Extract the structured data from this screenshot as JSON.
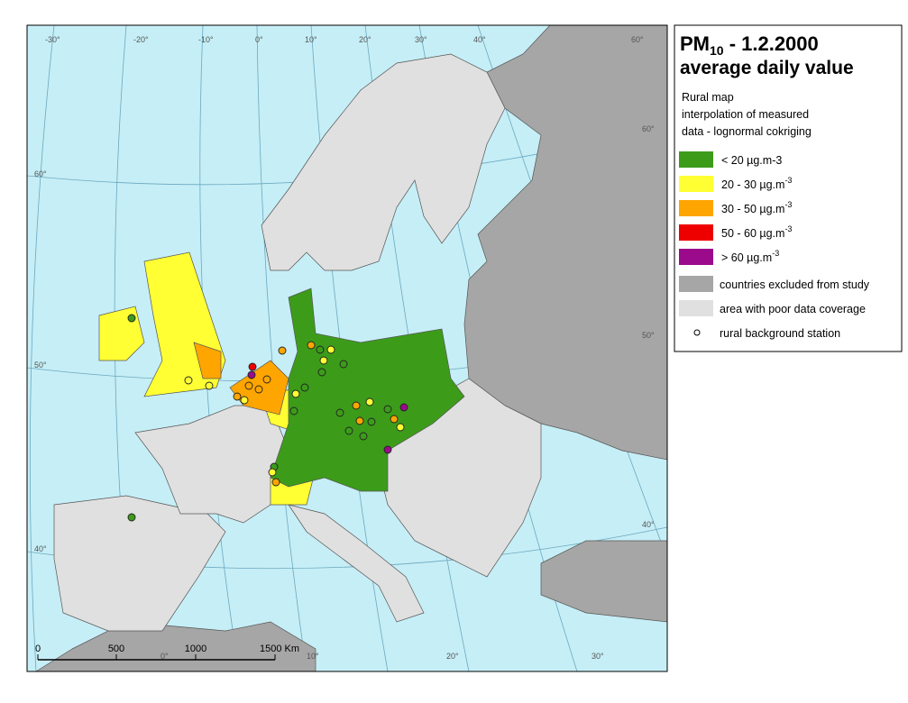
{
  "legend": {
    "title_prefix": "PM",
    "title_sub": "10",
    "title_rest": " - 1.2.2000",
    "title_line2": "average daily value",
    "subtitle": [
      "Rural map",
      "interpolation of measured",
      "data - lognormal cokriging"
    ],
    "classes": [
      {
        "label": "<  20  µg.m-3",
        "color": "#3c9c1a"
      },
      {
        "label": "20 - 30  µg.m",
        "sup": "-3",
        "color": "#ffff33"
      },
      {
        "label": "30 - 50  µg.m",
        "sup": "-3",
        "color": "#ffa500"
      },
      {
        "label": "50 - 60  µg.m",
        "sup": "-3",
        "color": "#ee0000"
      },
      {
        "label": ">  60  µg.m",
        "sup": "-3",
        "color": "#9c0a8c"
      }
    ],
    "areas": [
      {
        "label": "countries excluded from study",
        "color": "#a6a6a6"
      },
      {
        "label": "area with poor data coverage",
        "color": "#e0e0e0"
      }
    ],
    "station": "rural background station"
  },
  "graticule": {
    "top": [
      "-30°",
      "-20°",
      "-10°",
      "0°",
      "10°",
      "20°",
      "30°",
      "40°",
      "60°"
    ],
    "left": [
      "60°",
      "50°",
      "40°"
    ],
    "right": [
      "60°",
      "50°",
      "40°"
    ],
    "bottom": [
      "0°",
      "10°",
      "20°",
      "30°"
    ]
  },
  "scale": [
    "0",
    "500",
    "1000",
    "1500 Km"
  ]
}
